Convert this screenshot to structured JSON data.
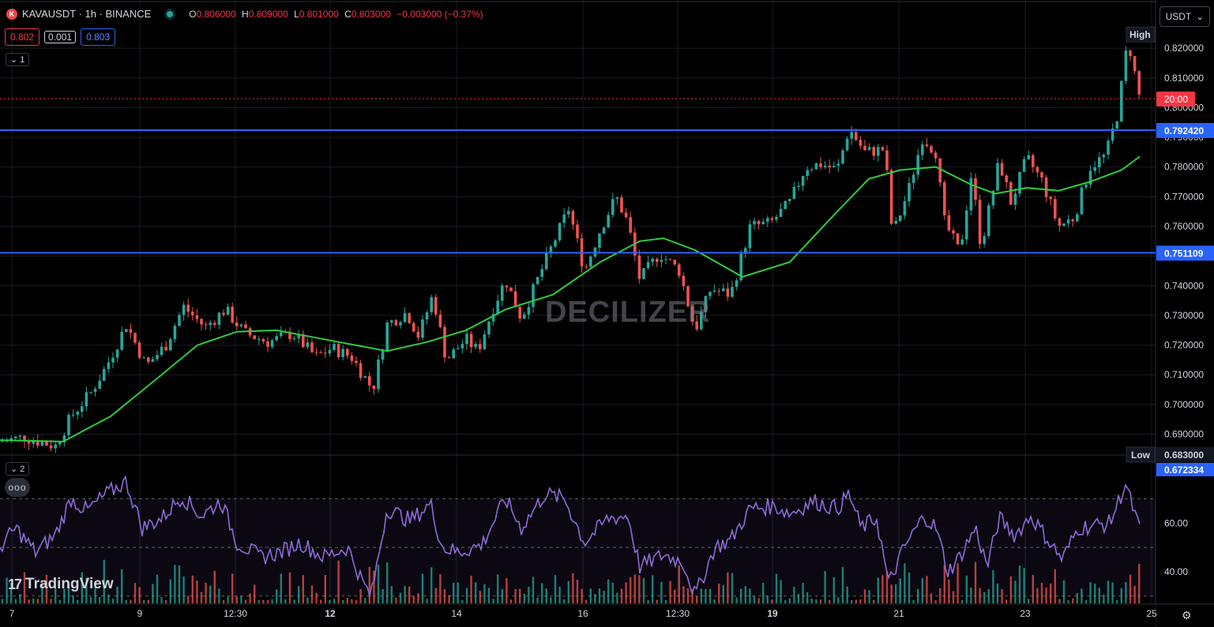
{
  "header": {
    "symbol_icon": "K",
    "title": "KAVAUSDT · 1h · BINANCE",
    "status": "market-open-dot",
    "ohlc": {
      "o_label": "O",
      "o": "0.806000",
      "h_label": "H",
      "h": "0.809000",
      "l_label": "L",
      "l": "0.801000",
      "c_label": "C",
      "c": "0.803000",
      "change": "−0.003000 (−0.37%)"
    }
  },
  "trade": {
    "sell": "0.802",
    "spread": "0.001",
    "buy": "0.803"
  },
  "panes": {
    "main_collapse": "1",
    "indicator_collapse": "2"
  },
  "more_button": "ooo",
  "currency": {
    "label": "USDT",
    "icon": "chevron-down-icon"
  },
  "watermark": "DECILIZER",
  "logo": "TradingView",
  "settings_icon": "gear-icon",
  "colors": {
    "up": "#26a69a",
    "down": "#ef5350",
    "ma": "#2ecc40",
    "rsi": "#8e6bd8",
    "hline": "#2962ff",
    "price_line": "#f23645",
    "background": "#000000"
  },
  "chart_data": [
    {
      "type": "candlestick",
      "title": "KAVAUSDT · 1h · BINANCE",
      "x_ticks": [
        "7",
        "9",
        "12:30",
        "12",
        "14",
        "16",
        "12:30",
        "19",
        "21",
        "23",
        "25"
      ],
      "y_ticks": [
        "0.820000",
        "0.810000",
        "0.800000",
        "0.790000",
        "0.780000",
        "0.770000",
        "0.760000",
        "0.750000",
        "0.740000",
        "0.730000",
        "0.720000",
        "0.710000",
        "0.700000",
        "0.690000"
      ],
      "ylim": [
        0.6835,
        0.8272
      ],
      "horizontal_lines": [
        {
          "label": "0.792420",
          "value": 0.79242
        },
        {
          "label": "0.751109",
          "value": 0.751109
        }
      ],
      "current_price": {
        "value": 0.803,
        "label": "20:00"
      },
      "high": {
        "label": "High",
        "value": 0.8245
      },
      "low": {
        "label": "Low",
        "value_label": "0.683000",
        "value": 0.683
      },
      "extra_label": "0.672334",
      "close_path": [
        {
          "x": 0,
          "y": 0.6875
        },
        {
          "x": 30,
          "y": 0.689
        },
        {
          "x": 70,
          "y": 0.686
        },
        {
          "x": 90,
          "y": 0.696
        },
        {
          "x": 115,
          "y": 0.704
        },
        {
          "x": 135,
          "y": 0.713
        },
        {
          "x": 160,
          "y": 0.727
        },
        {
          "x": 185,
          "y": 0.713
        },
        {
          "x": 210,
          "y": 0.72
        },
        {
          "x": 232,
          "y": 0.733
        },
        {
          "x": 260,
          "y": 0.726
        },
        {
          "x": 285,
          "y": 0.732
        },
        {
          "x": 310,
          "y": 0.724
        },
        {
          "x": 340,
          "y": 0.721
        },
        {
          "x": 370,
          "y": 0.724
        },
        {
          "x": 400,
          "y": 0.716
        },
        {
          "x": 420,
          "y": 0.719
        },
        {
          "x": 445,
          "y": 0.716
        },
        {
          "x": 472,
          "y": 0.705
        },
        {
          "x": 490,
          "y": 0.727
        },
        {
          "x": 515,
          "y": 0.731
        },
        {
          "x": 530,
          "y": 0.723
        },
        {
          "x": 548,
          "y": 0.737
        },
        {
          "x": 565,
          "y": 0.715
        },
        {
          "x": 590,
          "y": 0.722
        },
        {
          "x": 605,
          "y": 0.718
        },
        {
          "x": 625,
          "y": 0.733
        },
        {
          "x": 640,
          "y": 0.742
        },
        {
          "x": 660,
          "y": 0.729
        },
        {
          "x": 690,
          "y": 0.748
        },
        {
          "x": 720,
          "y": 0.766
        },
        {
          "x": 740,
          "y": 0.745
        },
        {
          "x": 760,
          "y": 0.759
        },
        {
          "x": 780,
          "y": 0.77
        },
        {
          "x": 795,
          "y": 0.761
        },
        {
          "x": 810,
          "y": 0.742
        },
        {
          "x": 835,
          "y": 0.751
        },
        {
          "x": 860,
          "y": 0.745
        },
        {
          "x": 880,
          "y": 0.725
        },
        {
          "x": 900,
          "y": 0.739
        },
        {
          "x": 925,
          "y": 0.737
        },
        {
          "x": 950,
          "y": 0.76
        },
        {
          "x": 975,
          "y": 0.761
        },
        {
          "x": 1000,
          "y": 0.768
        },
        {
          "x": 1020,
          "y": 0.78
        },
        {
          "x": 1040,
          "y": 0.781
        },
        {
          "x": 1060,
          "y": 0.779
        },
        {
          "x": 1075,
          "y": 0.793
        },
        {
          "x": 1095,
          "y": 0.785
        },
        {
          "x": 1120,
          "y": 0.786
        },
        {
          "x": 1130,
          "y": 0.757
        },
        {
          "x": 1150,
          "y": 0.772
        },
        {
          "x": 1168,
          "y": 0.79
        },
        {
          "x": 1185,
          "y": 0.785
        },
        {
          "x": 1195,
          "y": 0.762
        },
        {
          "x": 1215,
          "y": 0.751
        },
        {
          "x": 1230,
          "y": 0.778
        },
        {
          "x": 1242,
          "y": 0.753
        },
        {
          "x": 1265,
          "y": 0.782
        },
        {
          "x": 1280,
          "y": 0.768
        },
        {
          "x": 1300,
          "y": 0.783
        },
        {
          "x": 1320,
          "y": 0.775
        },
        {
          "x": 1340,
          "y": 0.76
        },
        {
          "x": 1360,
          "y": 0.763
        },
        {
          "x": 1380,
          "y": 0.78
        },
        {
          "x": 1400,
          "y": 0.784
        },
        {
          "x": 1415,
          "y": 0.798
        },
        {
          "x": 1428,
          "y": 0.823
        },
        {
          "x": 1443,
          "y": 0.803
        }
      ],
      "ma_path": [
        {
          "x": 0,
          "y": 0.688
        },
        {
          "x": 80,
          "y": 0.6875
        },
        {
          "x": 140,
          "y": 0.696
        },
        {
          "x": 200,
          "y": 0.709
        },
        {
          "x": 250,
          "y": 0.72
        },
        {
          "x": 300,
          "y": 0.7245
        },
        {
          "x": 350,
          "y": 0.725
        },
        {
          "x": 400,
          "y": 0.7225
        },
        {
          "x": 450,
          "y": 0.72
        },
        {
          "x": 490,
          "y": 0.718
        },
        {
          "x": 540,
          "y": 0.721
        },
        {
          "x": 590,
          "y": 0.725
        },
        {
          "x": 640,
          "y": 0.732
        },
        {
          "x": 700,
          "y": 0.737
        },
        {
          "x": 760,
          "y": 0.748
        },
        {
          "x": 810,
          "y": 0.755
        },
        {
          "x": 840,
          "y": 0.756
        },
        {
          "x": 880,
          "y": 0.752
        },
        {
          "x": 940,
          "y": 0.743
        },
        {
          "x": 1000,
          "y": 0.748
        },
        {
          "x": 1060,
          "y": 0.765
        },
        {
          "x": 1100,
          "y": 0.776
        },
        {
          "x": 1140,
          "y": 0.779
        },
        {
          "x": 1185,
          "y": 0.78
        },
        {
          "x": 1230,
          "y": 0.774
        },
        {
          "x": 1260,
          "y": 0.771
        },
        {
          "x": 1300,
          "y": 0.773
        },
        {
          "x": 1340,
          "y": 0.772
        },
        {
          "x": 1380,
          "y": 0.775
        },
        {
          "x": 1420,
          "y": 0.779
        },
        {
          "x": 1443,
          "y": 0.7835
        }
      ]
    },
    {
      "type": "line",
      "title": "",
      "y_ticks": [
        "60.00",
        "40.00"
      ],
      "ylim": [
        27,
        87
      ],
      "bands": [
        70,
        50,
        30
      ],
      "rsi_path": [
        {
          "x": 0,
          "y": 50
        },
        {
          "x": 20,
          "y": 58
        },
        {
          "x": 45,
          "y": 48
        },
        {
          "x": 70,
          "y": 55
        },
        {
          "x": 90,
          "y": 70
        },
        {
          "x": 110,
          "y": 65
        },
        {
          "x": 135,
          "y": 72
        },
        {
          "x": 160,
          "y": 77
        },
        {
          "x": 180,
          "y": 58
        },
        {
          "x": 205,
          "y": 62
        },
        {
          "x": 230,
          "y": 71
        },
        {
          "x": 255,
          "y": 63
        },
        {
          "x": 280,
          "y": 69
        },
        {
          "x": 300,
          "y": 52
        },
        {
          "x": 330,
          "y": 46
        },
        {
          "x": 355,
          "y": 48
        },
        {
          "x": 380,
          "y": 52
        },
        {
          "x": 410,
          "y": 46
        },
        {
          "x": 440,
          "y": 50
        },
        {
          "x": 460,
          "y": 35
        },
        {
          "x": 470,
          "y": 30
        },
        {
          "x": 490,
          "y": 66
        },
        {
          "x": 520,
          "y": 61
        },
        {
          "x": 545,
          "y": 68
        },
        {
          "x": 560,
          "y": 50
        },
        {
          "x": 580,
          "y": 48
        },
        {
          "x": 610,
          "y": 51
        },
        {
          "x": 640,
          "y": 70
        },
        {
          "x": 660,
          "y": 58
        },
        {
          "x": 690,
          "y": 72
        },
        {
          "x": 715,
          "y": 70
        },
        {
          "x": 740,
          "y": 52
        },
        {
          "x": 770,
          "y": 62
        },
        {
          "x": 795,
          "y": 63
        },
        {
          "x": 810,
          "y": 42
        },
        {
          "x": 840,
          "y": 47
        },
        {
          "x": 865,
          "y": 44
        },
        {
          "x": 880,
          "y": 30
        },
        {
          "x": 905,
          "y": 50
        },
        {
          "x": 925,
          "y": 53
        },
        {
          "x": 950,
          "y": 66
        },
        {
          "x": 980,
          "y": 67
        },
        {
          "x": 1000,
          "y": 64
        },
        {
          "x": 1030,
          "y": 69
        },
        {
          "x": 1060,
          "y": 66
        },
        {
          "x": 1075,
          "y": 72
        },
        {
          "x": 1090,
          "y": 58
        },
        {
          "x": 1110,
          "y": 62
        },
        {
          "x": 1125,
          "y": 35
        },
        {
          "x": 1145,
          "y": 50
        },
        {
          "x": 1170,
          "y": 63
        },
        {
          "x": 1185,
          "y": 58
        },
        {
          "x": 1200,
          "y": 40
        },
        {
          "x": 1215,
          "y": 46
        },
        {
          "x": 1235,
          "y": 58
        },
        {
          "x": 1250,
          "y": 42
        },
        {
          "x": 1265,
          "y": 62
        },
        {
          "x": 1285,
          "y": 55
        },
        {
          "x": 1305,
          "y": 63
        },
        {
          "x": 1325,
          "y": 54
        },
        {
          "x": 1345,
          "y": 45
        },
        {
          "x": 1365,
          "y": 58
        },
        {
          "x": 1385,
          "y": 59
        },
        {
          "x": 1405,
          "y": 60
        },
        {
          "x": 1425,
          "y": 76
        },
        {
          "x": 1443,
          "y": 57
        }
      ]
    }
  ]
}
